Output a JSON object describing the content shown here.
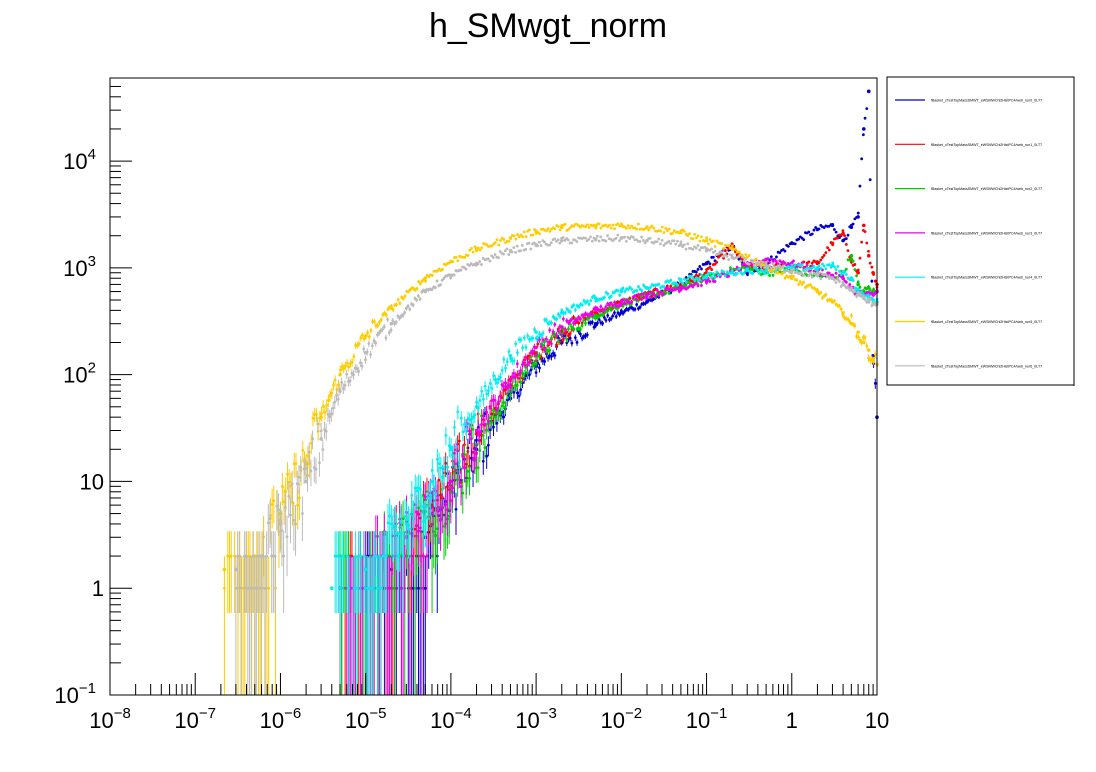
{
  "chart_data": {
    "type": "scatter",
    "title": "h_SMwgt_norm",
    "xlabel": "",
    "ylabel": "",
    "x_scale": "log",
    "y_scale": "log",
    "xlim": [
      1e-08,
      10
    ],
    "ylim": [
      0.1,
      60000
    ],
    "grid": false,
    "legend_position": "right",
    "x_ticks": [
      {
        "value": 1e-08,
        "base": "10",
        "exp": "−8"
      },
      {
        "value": 1e-07,
        "base": "10",
        "exp": "−7"
      },
      {
        "value": 1e-06,
        "base": "10",
        "exp": "−6"
      },
      {
        "value": 1e-05,
        "base": "10",
        "exp": "−5"
      },
      {
        "value": 0.0001,
        "base": "10",
        "exp": "−4"
      },
      {
        "value": 0.001,
        "base": "10",
        "exp": "−3"
      },
      {
        "value": 0.01,
        "base": "10",
        "exp": "−2"
      },
      {
        "value": 0.1,
        "base": "10",
        "exp": "−1"
      },
      {
        "value": 1,
        "base": "1",
        "exp": ""
      },
      {
        "value": 10,
        "base": "10",
        "exp": ""
      }
    ],
    "y_ticks": [
      {
        "value": 0.1,
        "base": "10",
        "exp": "−1"
      },
      {
        "value": 1,
        "base": "1",
        "exp": ""
      },
      {
        "value": 10,
        "base": "10",
        "exp": ""
      },
      {
        "value": 100,
        "base": "10",
        "exp": "2"
      },
      {
        "value": 1000,
        "base": "10",
        "exp": "3"
      },
      {
        "value": 10000,
        "base": "10",
        "exp": "4"
      }
    ],
    "series": [
      {
        "name": "fBasket_cTestTopMassSMWT_eWSMWChi2HistPC4/web_run0_0LT7",
        "color": "#0000cc",
        "points": [
          [
            1e-05,
            1
          ],
          [
            2e-05,
            1.5
          ],
          [
            5e-05,
            3
          ],
          [
            0.0001,
            8
          ],
          [
            0.0002,
            20
          ],
          [
            0.0005,
            60
          ],
          [
            0.001,
            120
          ],
          [
            0.002,
            200
          ],
          [
            0.005,
            300
          ],
          [
            0.01,
            380
          ],
          [
            0.02,
            480
          ],
          [
            0.05,
            700
          ],
          [
            0.1,
            1100
          ],
          [
            0.2,
            1600
          ],
          [
            0.3,
            900
          ],
          [
            0.5,
            1100
          ],
          [
            1,
            1700
          ],
          [
            2,
            2300
          ],
          [
            3,
            2500
          ],
          [
            4,
            1800
          ],
          [
            5,
            2400
          ],
          [
            6,
            3000
          ],
          [
            7,
            20000
          ],
          [
            8,
            45000
          ],
          [
            9,
            150
          ],
          [
            10,
            40
          ]
        ]
      },
      {
        "name": "fBasket_cTestTopMassSMWT_eWSMWChi2HistPC4/web_run1_0LT7",
        "color": "#ff0000",
        "points": [
          [
            5e-06,
            1
          ],
          [
            1e-05,
            1.5
          ],
          [
            3e-05,
            3
          ],
          [
            6e-05,
            6
          ],
          [
            0.0001,
            10
          ],
          [
            0.0002,
            28
          ],
          [
            0.0005,
            80
          ],
          [
            0.001,
            160
          ],
          [
            0.002,
            250
          ],
          [
            0.005,
            380
          ],
          [
            0.01,
            470
          ],
          [
            0.02,
            560
          ],
          [
            0.05,
            700
          ],
          [
            0.1,
            900
          ],
          [
            0.2,
            1600
          ],
          [
            0.3,
            1000
          ],
          [
            0.5,
            1000
          ],
          [
            1,
            1050
          ],
          [
            2,
            1100
          ],
          [
            3,
            1700
          ],
          [
            4,
            2100
          ],
          [
            5,
            1200
          ],
          [
            6,
            900
          ],
          [
            7,
            2500
          ],
          [
            8,
            1300
          ],
          [
            9,
            900
          ],
          [
            10,
            700
          ]
        ]
      },
      {
        "name": "fBasket_cTestTopMassSMWT_eWSMWChi2HistPC4/web_run2_0LT7",
        "color": "#00cc00",
        "points": [
          [
            5e-06,
            1
          ],
          [
            1e-05,
            1.5
          ],
          [
            3e-05,
            3
          ],
          [
            6e-05,
            5
          ],
          [
            0.0001,
            8
          ],
          [
            0.0002,
            22
          ],
          [
            0.0005,
            70
          ],
          [
            0.001,
            150
          ],
          [
            0.002,
            240
          ],
          [
            0.005,
            360
          ],
          [
            0.01,
            460
          ],
          [
            0.02,
            540
          ],
          [
            0.05,
            650
          ],
          [
            0.1,
            800
          ],
          [
            0.2,
            950
          ],
          [
            0.3,
            1000
          ],
          [
            0.5,
            900
          ],
          [
            1,
            950
          ],
          [
            2,
            850
          ],
          [
            3,
            800
          ],
          [
            4,
            900
          ],
          [
            5,
            1300
          ],
          [
            6,
            700
          ],
          [
            7,
            600
          ],
          [
            8,
            650
          ],
          [
            9,
            600
          ],
          [
            10,
            600
          ]
        ]
      },
      {
        "name": "fBasket_cTestTopMassSMWT_eWSMWChi2HistPC4/web_run3_0LT7",
        "color": "#ee00ee",
        "points": [
          [
            5e-06,
            1
          ],
          [
            1e-05,
            1.5
          ],
          [
            3e-05,
            3
          ],
          [
            6e-05,
            5
          ],
          [
            0.0001,
            10
          ],
          [
            0.0002,
            30
          ],
          [
            0.0005,
            90
          ],
          [
            0.001,
            180
          ],
          [
            0.002,
            280
          ],
          [
            0.005,
            400
          ],
          [
            0.01,
            480
          ],
          [
            0.02,
            560
          ],
          [
            0.05,
            650
          ],
          [
            0.1,
            750
          ],
          [
            0.2,
            900
          ],
          [
            0.3,
            1050
          ],
          [
            0.5,
            1200
          ],
          [
            1,
            1100
          ],
          [
            2,
            950
          ],
          [
            3,
            850
          ],
          [
            4,
            800
          ],
          [
            5,
            650
          ],
          [
            6,
            580
          ],
          [
            7,
            560
          ],
          [
            8,
            560
          ],
          [
            9,
            560
          ],
          [
            10,
            600
          ]
        ]
      },
      {
        "name": "fBasket_cTestTopMassSMWT_eWSMWChi2HistPC4/web_run4_0LT7",
        "color": "#00eeee",
        "points": [
          [
            4e-06,
            1
          ],
          [
            1e-05,
            1.5
          ],
          [
            3e-05,
            4
          ],
          [
            6e-05,
            10
          ],
          [
            0.0001,
            20
          ],
          [
            0.0002,
            50
          ],
          [
            0.0005,
            150
          ],
          [
            0.001,
            250
          ],
          [
            0.002,
            380
          ],
          [
            0.005,
            520
          ],
          [
            0.01,
            600
          ],
          [
            0.02,
            650
          ],
          [
            0.05,
            750
          ],
          [
            0.1,
            850
          ],
          [
            0.2,
            900
          ],
          [
            0.3,
            950
          ],
          [
            0.5,
            950
          ],
          [
            1,
            1000
          ],
          [
            2,
            1000
          ],
          [
            3,
            1050
          ],
          [
            4,
            900
          ],
          [
            5,
            800
          ],
          [
            6,
            600
          ],
          [
            7,
            550
          ],
          [
            8,
            520
          ],
          [
            9,
            500
          ],
          [
            10,
            480
          ]
        ]
      },
      {
        "name": "fBasket_cTestTopMassSMWT_eWSMWChi2HistPC4/web_run5_0LT7",
        "color": "#ffcc00",
        "points": [
          [
            2.2e-07,
            1.5
          ],
          [
            5e-07,
            2
          ],
          [
            1e-06,
            5
          ],
          [
            2e-06,
            15
          ],
          [
            3e-06,
            40
          ],
          [
            5e-06,
            100
          ],
          [
            1e-05,
            230
          ],
          [
            2e-05,
            420
          ],
          [
            5e-05,
            800
          ],
          [
            0.0001,
            1150
          ],
          [
            0.0002,
            1500
          ],
          [
            0.0005,
            1900
          ],
          [
            0.001,
            2200
          ],
          [
            0.002,
            2400
          ],
          [
            0.005,
            2450
          ],
          [
            0.01,
            2500
          ],
          [
            0.02,
            2400
          ],
          [
            0.05,
            2150
          ],
          [
            0.1,
            1800
          ],
          [
            0.2,
            1500
          ],
          [
            0.5,
            1050
          ],
          [
            1,
            800
          ],
          [
            2,
            600
          ],
          [
            3,
            480
          ],
          [
            4,
            380
          ],
          [
            5,
            300
          ],
          [
            6,
            250
          ],
          [
            7,
            200
          ],
          [
            8,
            170
          ],
          [
            9,
            140
          ],
          [
            10,
            125
          ]
        ]
      },
      {
        "name": "fBasket_cTestTopMassSMWT_eWSMWChi2HistPC4/web_run6_0LT7",
        "color": "#bbbbbb",
        "points": [
          [
            3e-07,
            1.5
          ],
          [
            6e-07,
            2
          ],
          [
            1e-06,
            4
          ],
          [
            2e-06,
            10
          ],
          [
            3e-06,
            25
          ],
          [
            5e-06,
            70
          ],
          [
            1e-05,
            160
          ],
          [
            2e-05,
            300
          ],
          [
            5e-05,
            600
          ],
          [
            0.0001,
            850
          ],
          [
            0.0002,
            1100
          ],
          [
            0.0005,
            1450
          ],
          [
            0.001,
            1650
          ],
          [
            0.002,
            1800
          ],
          [
            0.005,
            1850
          ],
          [
            0.01,
            1900
          ],
          [
            0.02,
            1800
          ],
          [
            0.05,
            1650
          ],
          [
            0.1,
            1450
          ],
          [
            0.2,
            1250
          ],
          [
            0.5,
            1050
          ],
          [
            1,
            950
          ],
          [
            2,
            850
          ],
          [
            3,
            800
          ],
          [
            4,
            700
          ],
          [
            5,
            620
          ],
          [
            6,
            560
          ],
          [
            7,
            520
          ],
          [
            8,
            480
          ],
          [
            9,
            470
          ],
          [
            10,
            460
          ]
        ]
      }
    ]
  }
}
